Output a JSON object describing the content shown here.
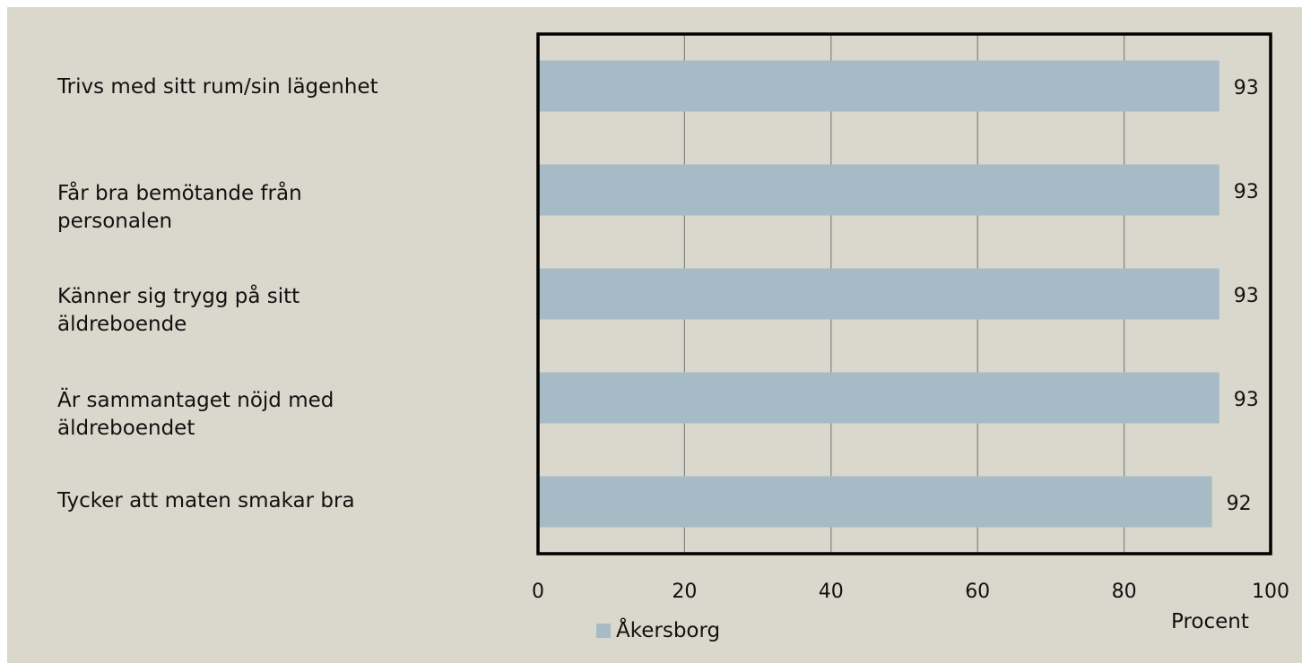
{
  "colors": {
    "background": "#dad8cc",
    "bar": "#a6bbc6",
    "frame": "#000000",
    "grid": "#808080"
  },
  "chart_data": {
    "type": "bar",
    "orientation": "horizontal",
    "categories": [
      "Trivs med sitt rum/sin lägenhet",
      "Får bra bemötande från personalen",
      "Känner sig trygg på sitt äldreboende",
      "Är sammantaget nöjd med äldreboendet",
      "Tycker att maten smakar bra"
    ],
    "series": [
      {
        "name": "Åkersborg",
        "values": [
          93,
          93,
          93,
          93,
          92
        ]
      }
    ],
    "xlim": [
      0,
      100
    ],
    "xticks": [
      0,
      20,
      40,
      60,
      80,
      100
    ],
    "xlabel": "Procent",
    "ylabel": "",
    "grid": "vertical",
    "legend": "bottom",
    "data_labels": true
  }
}
